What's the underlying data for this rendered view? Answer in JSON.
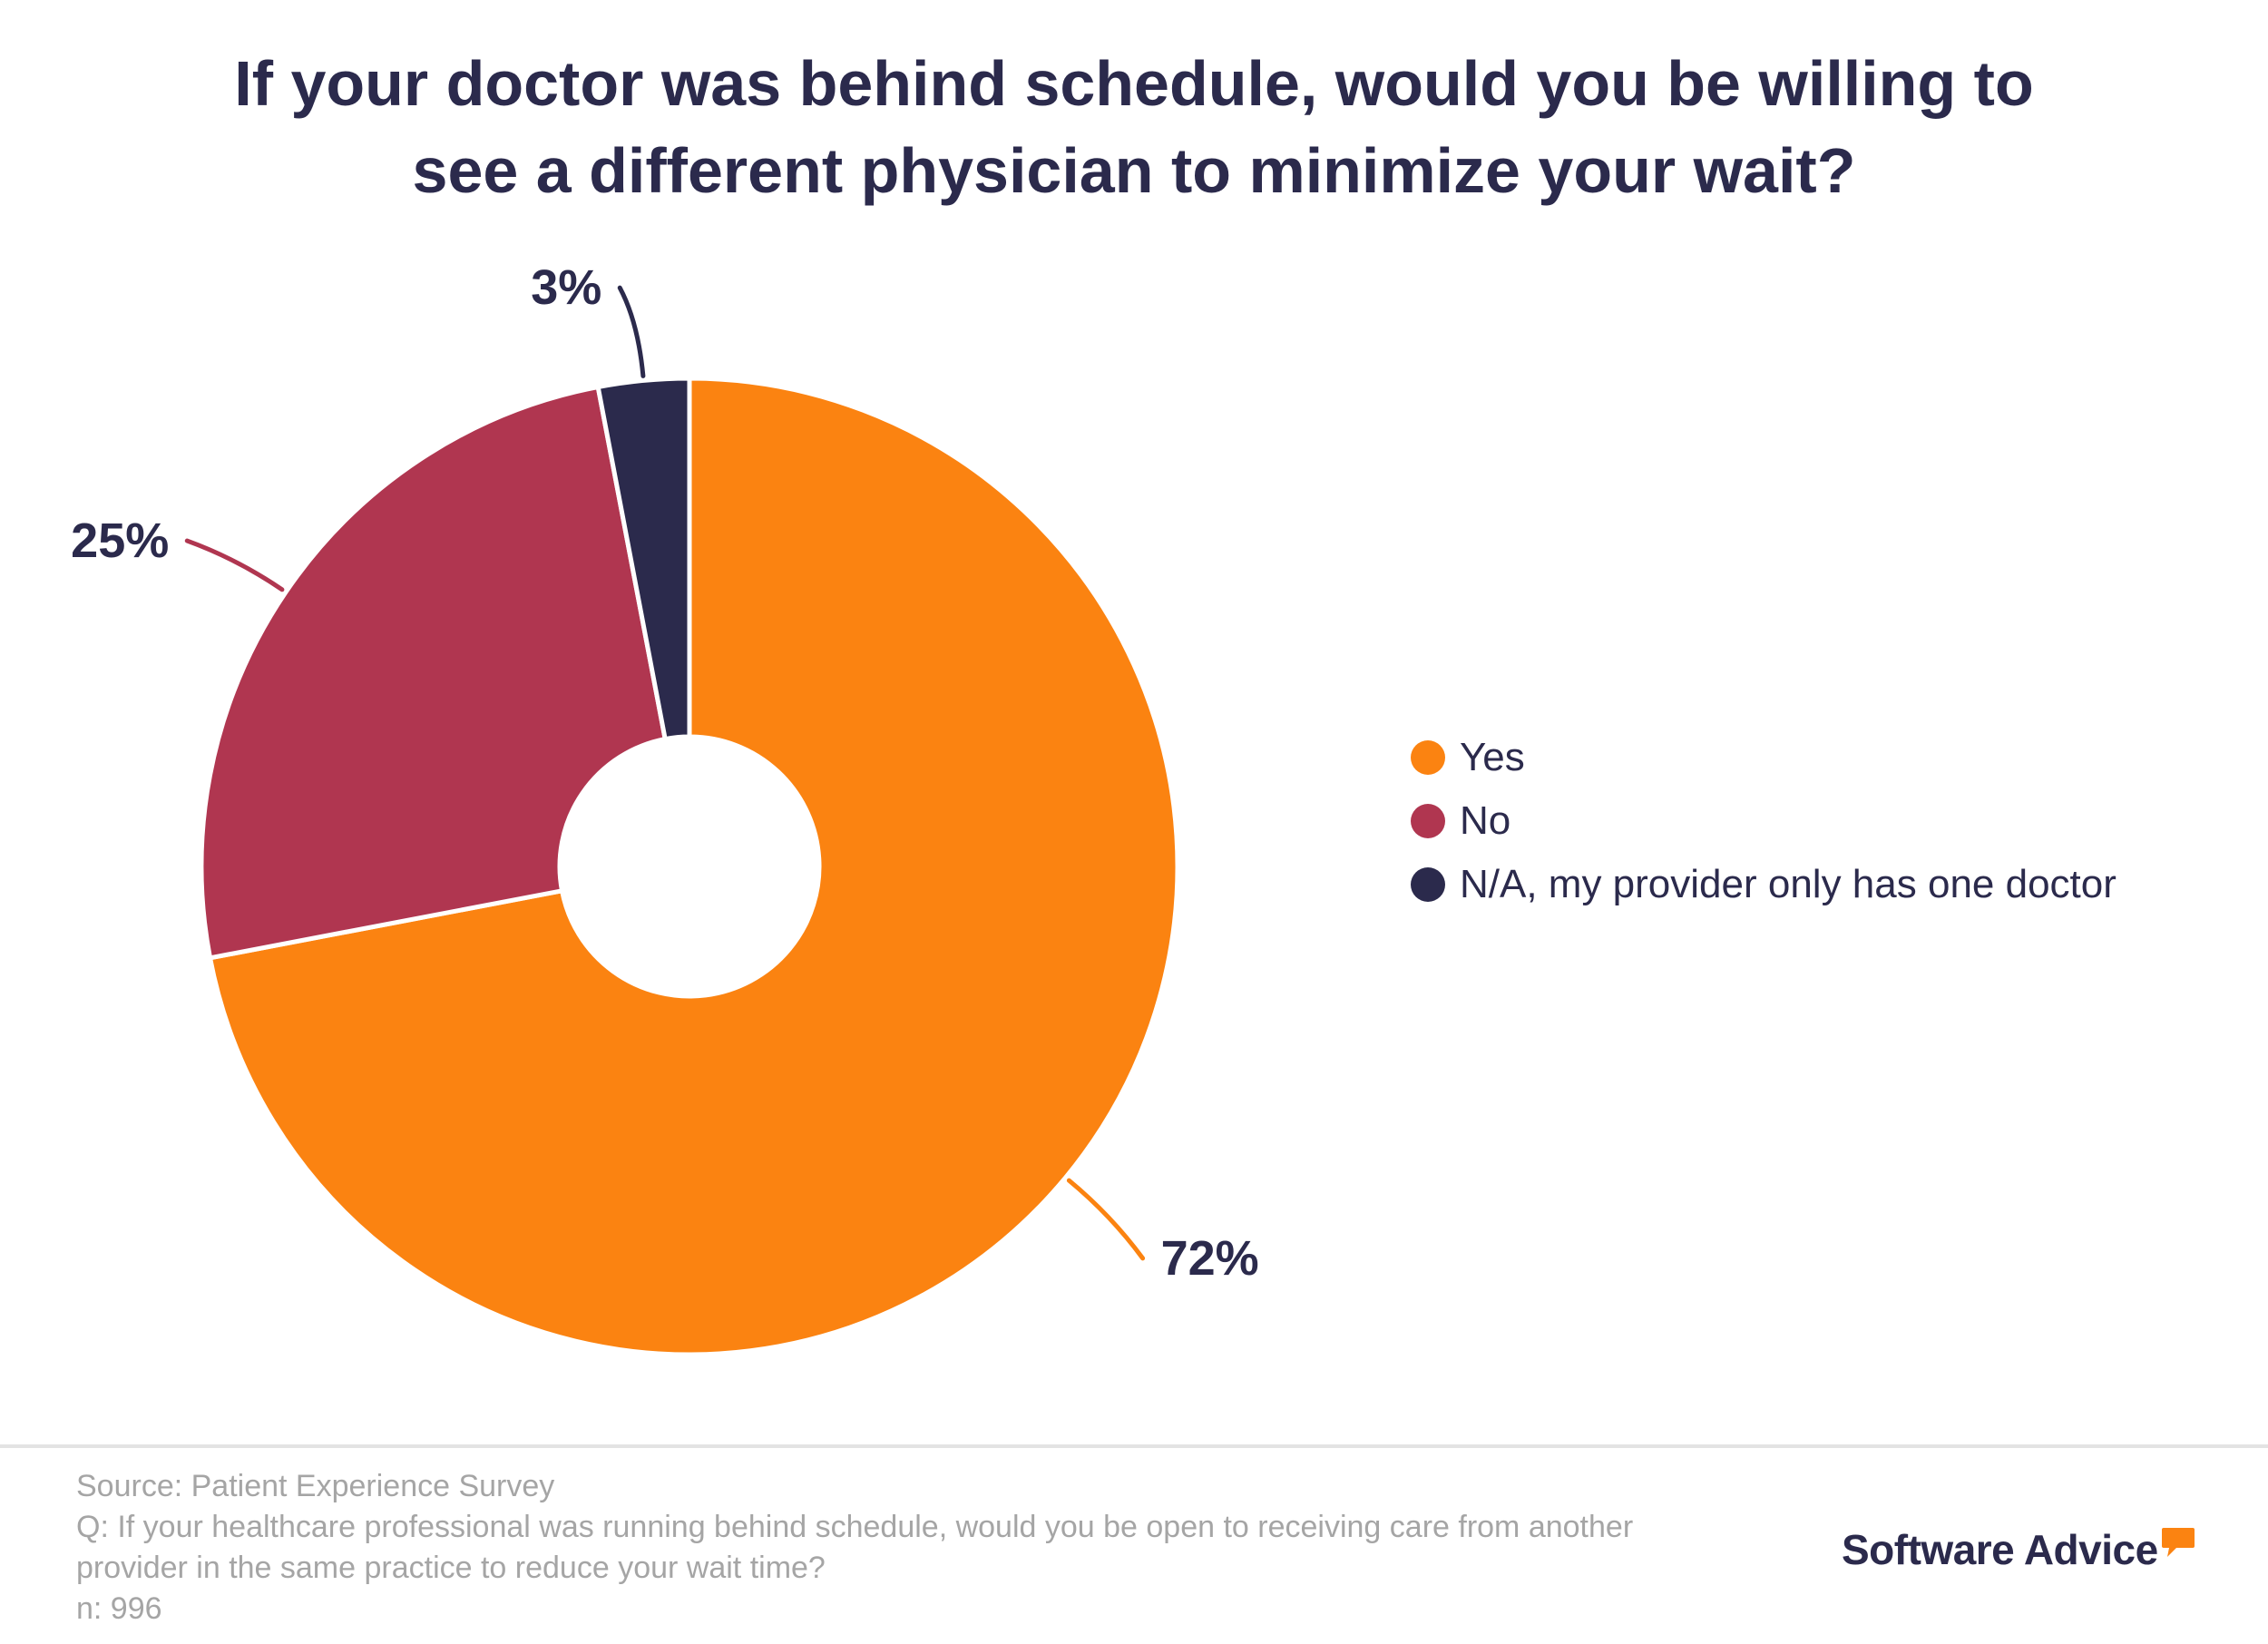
{
  "title": {
    "line1": "If your doctor was behind schedule, would you be willing to",
    "line2": "see a different physician to minimize your wait?"
  },
  "chart_data": {
    "type": "pie",
    "donut": true,
    "title": "If your doctor was behind schedule, would you be willing to see a different physician to minimize your wait?",
    "series": [
      {
        "name": "Yes",
        "value": 72,
        "label": "72%",
        "color": "#fb8311"
      },
      {
        "name": "No",
        "value": 25,
        "label": "25%",
        "color": "#b03650"
      },
      {
        "name": "N/A, my provider only has one doctor",
        "value": 3,
        "label": "3%",
        "color": "#2b2a4c"
      }
    ],
    "legend_position": "right"
  },
  "legend": [
    {
      "label": "Yes",
      "color": "#fb8311"
    },
    {
      "label": "No",
      "color": "#b03650"
    },
    {
      "label": "N/A, my provider only has one doctor",
      "color": "#2b2a4c"
    }
  ],
  "footer": {
    "source": "Source: Patient Experience Survey",
    "question_line1": "Q: If your healthcare professional was running behind schedule, would you be open to receiving care from another",
    "question_line2": "provider in the same practice to reduce your wait time?",
    "n": "n: 996"
  },
  "brand": {
    "name": "Software Advice",
    "accent_color": "#fb8311"
  }
}
